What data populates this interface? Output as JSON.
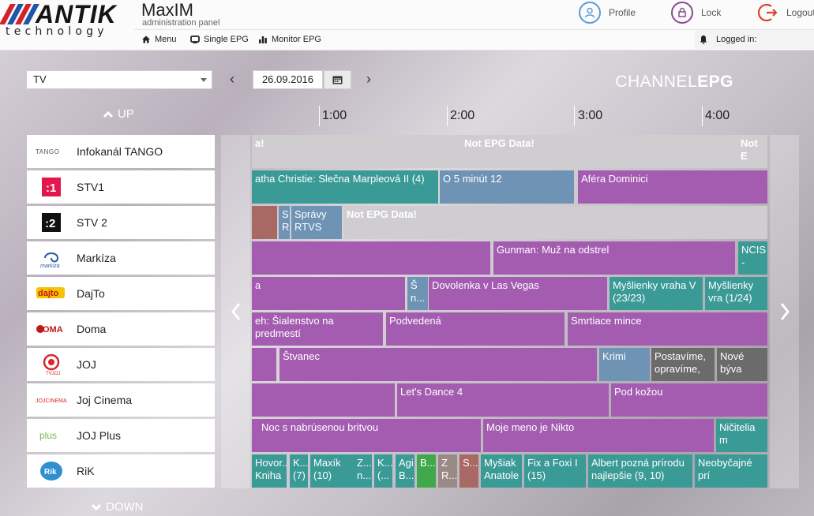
{
  "brand": {
    "logo_text": "ANTIK",
    "logo_subtext": "technology",
    "app_title": "MaxIM",
    "app_subtitle": "administration panel"
  },
  "nav": {
    "menu": "Menu",
    "single_epg": "Single EPG",
    "monitor_epg": "Monitor EPG"
  },
  "user": {
    "profile": "Profile",
    "lock": "Lock",
    "logout": "Logout",
    "logged_in": "Logged in:"
  },
  "filter": {
    "type_value": "TV",
    "date": "26.09.2016"
  },
  "view_title": {
    "part1": "CHANNEL",
    "part2": "EPG"
  },
  "scroll": {
    "up": "UP",
    "down": "DOWN"
  },
  "timeline": [
    "1:00",
    "2:00",
    "3:00",
    "4:00"
  ],
  "channels": [
    {
      "name": "Infokanál TANGO",
      "logo": "tango-logo"
    },
    {
      "name": "STV1",
      "logo": "stv1-logo"
    },
    {
      "name": "STV 2",
      "logo": "stv2-logo"
    },
    {
      "name": "Markíza",
      "logo": "markiza-logo"
    },
    {
      "name": "DajTo",
      "logo": "dajto-logo"
    },
    {
      "name": "Doma",
      "logo": "doma-logo"
    },
    {
      "name": "JOJ",
      "logo": "joj-logo"
    },
    {
      "name": "Joj Cinema",
      "logo": "joj-cinema-logo"
    },
    {
      "name": "JOJ Plus",
      "logo": "joj-plus-logo"
    },
    {
      "name": "RiK",
      "logo": "rik-logo"
    }
  ],
  "programs": [
    [
      {
        "t": "a!",
        "c": "noepg"
      },
      {
        "t": "Not EPG Data!",
        "c": "noepg"
      },
      {
        "t": "Not E",
        "c": "noepg"
      }
    ],
    [
      {
        "t": "atha Christie: Slečna Marpleová II (4)",
        "c": "#3a9a96"
      },
      {
        "t": "O 5 minút 12",
        "c": "#6f93b5"
      },
      {
        "t": "Aféra Dominici",
        "c": "#a35cb0"
      }
    ],
    [
      {
        "t": "",
        "c": "#a86864"
      },
      {
        "t": "S R",
        "c": "#6f93b5"
      },
      {
        "t": "Správy RTVS",
        "c": "#6f93b5"
      },
      {
        "t": "Not EPG Data!",
        "c": "noepg"
      }
    ],
    [
      {
        "t": "",
        "c": "#a35cb0"
      },
      {
        "t": "Gunman: Muž na odstrel",
        "c": "#a35cb0"
      },
      {
        "t": "NCIS -",
        "c": "#3a9a96"
      }
    ],
    [
      {
        "t": "a",
        "c": "#a35cb0"
      },
      {
        "t": "Š n...",
        "c": "#6f93b5"
      },
      {
        "t": "Dovolenka v Las Vegas",
        "c": "#a35cb0"
      },
      {
        "t": "Myšlienky vraha V (23/23)",
        "c": "#3a9a96"
      },
      {
        "t": "Myšlienky vra (1/24)",
        "c": "#3a9a96"
      }
    ],
    [
      {
        "t": "eh: Šialenstvo na predmestí",
        "c": "#a35cb0"
      },
      {
        "t": "Podvedená",
        "c": "#a35cb0"
      },
      {
        "t": "Smrtiace mince",
        "c": "#a35cb0"
      }
    ],
    [
      {
        "t": "",
        "c": "#a35cb0"
      },
      {
        "t": "Štvanec",
        "c": "#a35cb0"
      },
      {
        "t": "Krimi",
        "c": "#6f93b5"
      },
      {
        "t": "Postavíme, opravíme,",
        "c": "#6b6b6b"
      },
      {
        "t": "Nové býva",
        "c": "#6b6b6b"
      }
    ],
    [
      {
        "t": "",
        "c": "#a35cb0"
      },
      {
        "t": "Let's Dance 4",
        "c": "#a35cb0"
      },
      {
        "t": "Pod kožou",
        "c": "#a35cb0"
      }
    ],
    [
      {
        "t": "",
        "c": "#a35cb0"
      },
      {
        "t": "Noc s nabrúsenou britvou",
        "c": "#a35cb0"
      },
      {
        "t": "Moje meno je Nikto",
        "c": "#a35cb0"
      },
      {
        "t": "Ničitelia m",
        "c": "#3a9a96"
      }
    ],
    [
      {
        "t": "Hovor... Kniha",
        "c": "#3a9a96"
      },
      {
        "t": "K... (7)",
        "c": "#3a9a96"
      },
      {
        "t": "Maxík (10)",
        "c": "#3a9a96"
      },
      {
        "t": "Z... n...",
        "c": "#3a9a96"
      },
      {
        "t": "K... (...",
        "c": "#3a9a96"
      },
      {
        "t": "Agi B...",
        "c": "#3a9a96"
      },
      {
        "t": "B...",
        "c": "#3fa84a"
      },
      {
        "t": "Z R...",
        "c": "#9a8a86"
      },
      {
        "t": "S...",
        "c": "#a86864"
      },
      {
        "t": "Myšiak Anatole",
        "c": "#3a9a96"
      },
      {
        "t": "Fix a Foxi I (15)",
        "c": "#3a9a96"
      },
      {
        "t": "Albert pozná prírodu najlepšie (9, 10)",
        "c": "#3a9a96"
      },
      {
        "t": "Neobyčajné prí",
        "c": "#3a9a96"
      }
    ]
  ]
}
